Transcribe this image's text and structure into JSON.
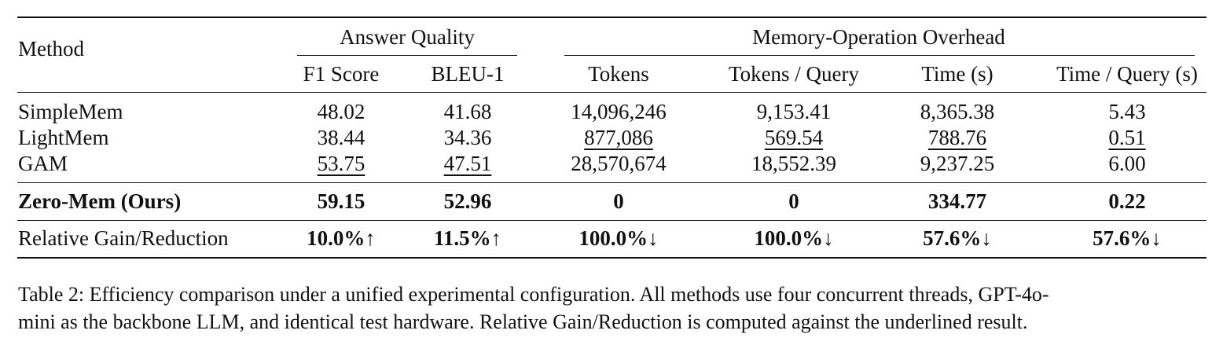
{
  "table": {
    "header": {
      "method": "Method",
      "group_answer_quality": "Answer Quality",
      "group_overhead": "Memory-Operation Overhead",
      "columns": [
        "F1 Score",
        "BLEU-1",
        "Tokens",
        "Tokens / Query",
        "Time (s)",
        "Time / Query (s)"
      ]
    },
    "rows": [
      {
        "method": "SimpleMem",
        "values": [
          "48.02",
          "41.68",
          "14,096,246",
          "9,153.41",
          "8,365.38",
          "5.43"
        ]
      },
      {
        "method": "LightMem",
        "values": [
          "38.44",
          "34.36",
          "877,086",
          "569.54",
          "788.76",
          "0.51"
        ],
        "underlined_columns": [
          2,
          3,
          4,
          5
        ]
      },
      {
        "method": "GAM",
        "values": [
          "53.75",
          "47.51",
          "28,570,674",
          "18,552.39",
          "9,237.25",
          "6.00"
        ],
        "underlined_columns": [
          0,
          1
        ]
      },
      {
        "method": "Zero-Mem (Ours)",
        "values": [
          "59.15",
          "52.96",
          "0",
          "0",
          "334.77",
          "0.22"
        ],
        "bold": true
      },
      {
        "method": "Relative Gain/Reduction",
        "values": [
          "10.0%↑",
          "11.5%↑",
          "100.0%↓",
          "100.0%↓",
          "57.6%↓",
          "57.6%↓"
        ],
        "bold_values": true
      }
    ]
  },
  "caption": {
    "line1": "Table 2: Efficiency comparison under a unified experimental configuration. All methods use four concurrent threads, GPT-4o-",
    "line2": "mini as the backbone LLM, and identical test hardware. Relative Gain/Reduction is computed against the underlined result."
  }
}
